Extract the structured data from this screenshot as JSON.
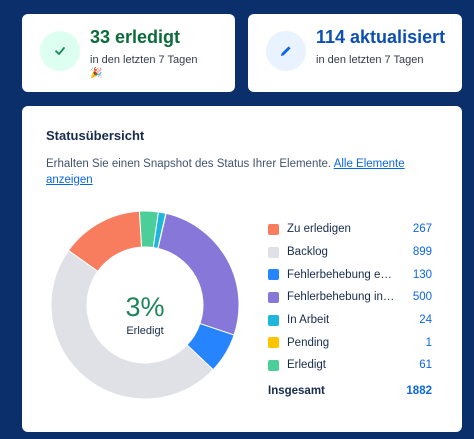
{
  "summary": {
    "done": {
      "main": "33 erledigt",
      "sub": "in den letzten 7 Tagen",
      "emoji": "🎉",
      "icon": "check-icon",
      "icon_bg": "#dcfff1",
      "color": "#1f845a"
    },
    "updated": {
      "main": "114 aktualisiert",
      "sub": "in den letzten 7 Tagen",
      "icon": "pencil-icon",
      "icon_bg": "#e9f2ff",
      "color": "#0c66e4"
    }
  },
  "status": {
    "title": "Statusübersicht",
    "description": "Erhalten Sie einen Snapshot des Status Ihrer Elemente.",
    "link": "Alle Elemente anzeigen",
    "center_percent": "3%",
    "center_label": "Erledigt",
    "total_label": "Insgesamt",
    "total_value": "1882"
  },
  "chart_data": {
    "type": "pie",
    "categories": [
      "Zu erledigen",
      "Backlog",
      "Fehlerbehebung ext…",
      "Fehlerbehebung int…",
      "In Arbeit",
      "Pending",
      "Erledigt"
    ],
    "values": [
      267,
      899,
      130,
      500,
      24,
      1,
      61
    ],
    "colors": [
      "#f87d5f",
      "#dfe1e6",
      "#2684ff",
      "#8777d9",
      "#1fb6dc",
      "#ffc400",
      "#4bce97"
    ],
    "total": 1882
  }
}
